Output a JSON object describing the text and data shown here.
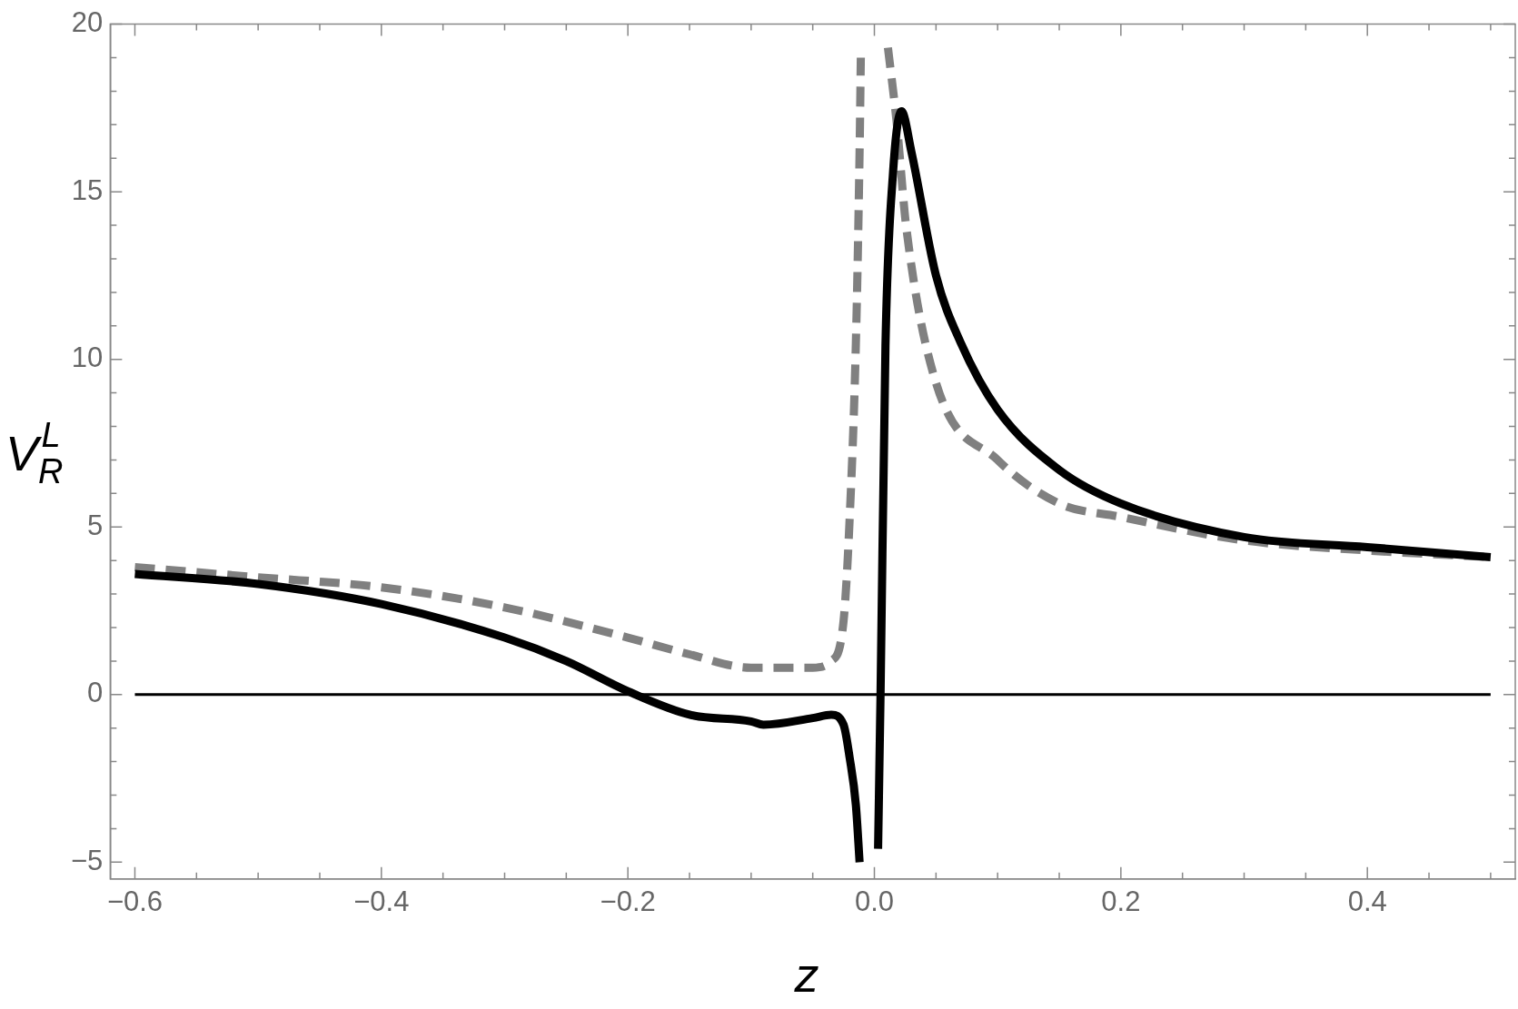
{
  "chart_data": {
    "type": "line",
    "xlabel": "z",
    "ylabel": "V$_{R}$$^{L}$",
    "xlim": [
      -0.62,
      0.52
    ],
    "ylim": [
      -5.5,
      20
    ],
    "xticks": [
      {
        "value": -0.6,
        "label": "−0.6"
      },
      {
        "value": -0.55,
        "label": null
      },
      {
        "value": -0.5,
        "label": null
      },
      {
        "value": -0.45,
        "label": null
      },
      {
        "value": -0.4,
        "label": "−0.4"
      },
      {
        "value": -0.35,
        "label": null
      },
      {
        "value": -0.3,
        "label": null
      },
      {
        "value": -0.25,
        "label": null
      },
      {
        "value": -0.2,
        "label": "−0.2"
      },
      {
        "value": -0.15,
        "label": null
      },
      {
        "value": -0.1,
        "label": null
      },
      {
        "value": -0.05,
        "label": null
      },
      {
        "value": 0,
        "label": "0.0"
      },
      {
        "value": 0.05,
        "label": null
      },
      {
        "value": 0.1,
        "label": null
      },
      {
        "value": 0.15,
        "label": null
      },
      {
        "value": 0.2,
        "label": "0.2"
      },
      {
        "value": 0.25,
        "label": null
      },
      {
        "value": 0.3,
        "label": null
      },
      {
        "value": 0.35,
        "label": null
      },
      {
        "value": 0.4,
        "label": "0.4"
      },
      {
        "value": 0.45,
        "label": null
      },
      {
        "value": 0.5,
        "label": null
      }
    ],
    "yticks": [
      {
        "value": -5,
        "label": "−5"
      },
      {
        "value": -4,
        "label": null
      },
      {
        "value": -3,
        "label": null
      },
      {
        "value": -2,
        "label": null
      },
      {
        "value": -1,
        "label": null
      },
      0,
      {
        "value": 1,
        "label": null
      },
      {
        "value": 2,
        "label": null
      },
      {
        "value": 3,
        "label": null
      },
      {
        "value": 4,
        "label": null
      },
      5,
      {
        "value": 6,
        "label": null
      },
      {
        "value": 7,
        "label": null
      },
      {
        "value": 8,
        "label": null
      },
      {
        "value": 9,
        "label": null
      },
      10,
      {
        "value": 11,
        "label": null
      },
      {
        "value": 12,
        "label": null
      },
      {
        "value": 13,
        "label": null
      },
      {
        "value": 14,
        "label": null
      },
      15,
      {
        "value": 16,
        "label": null
      },
      {
        "value": 17,
        "label": null
      },
      {
        "value": 18,
        "label": null
      },
      {
        "value": 19,
        "label": null
      },
      20
    ],
    "grid": false,
    "legend": false,
    "marker": "none",
    "ref_lines": [
      {
        "axis": "y",
        "value": 0,
        "color": "#000000"
      }
    ],
    "series": [
      {
        "color": "#000000",
        "line_style": "solid",
        "x": [
          -0.6,
          -0.5,
          -0.4,
          -0.3,
          -0.25,
          -0.2,
          -0.15,
          -0.1,
          -0.09,
          -0.05,
          -0.035,
          -0.025,
          -0.02,
          -0.015,
          -0.012,
          null,
          0.003,
          0.005,
          0.009,
          0.015,
          0.022,
          0.03,
          0.05,
          0.07,
          0.1,
          0.15,
          0.2,
          0.3,
          0.4,
          0.5
        ],
        "values": [
          3.6,
          3.3,
          2.7,
          1.7,
          1.0,
          0.1,
          -0.6,
          -0.8,
          -0.9,
          -0.7,
          -0.6,
          -0.9,
          -1.9,
          -3.3,
          -5.0,
          null,
          -4.6,
          0,
          10.4,
          15.5,
          17.4,
          16.2,
          12.5,
          10.5,
          8.5,
          6.7,
          5.7,
          4.7,
          4.4,
          4.1
        ]
      },
      {
        "color": "#808080",
        "line_style": "dashed",
        "x": [
          -0.6,
          -0.5,
          -0.4,
          -0.3,
          -0.2,
          -0.15,
          -0.1,
          -0.05,
          -0.035,
          -0.025,
          -0.02,
          -0.015,
          -0.012,
          -0.011,
          null,
          0.011,
          0.018,
          0.026,
          0.05,
          0.1,
          0.15,
          0.2,
          0.3,
          0.4,
          0.5
        ],
        "values": [
          3.8,
          3.5,
          3.2,
          2.6,
          1.7,
          1.2,
          0.8,
          0.8,
          1.0,
          2.2,
          5.3,
          10.5,
          16.2,
          19.0,
          null,
          19.3,
          17.1,
          13.9,
          9.3,
          7.0,
          5.7,
          5.3,
          4.6,
          4.3,
          4.1
        ]
      }
    ]
  }
}
